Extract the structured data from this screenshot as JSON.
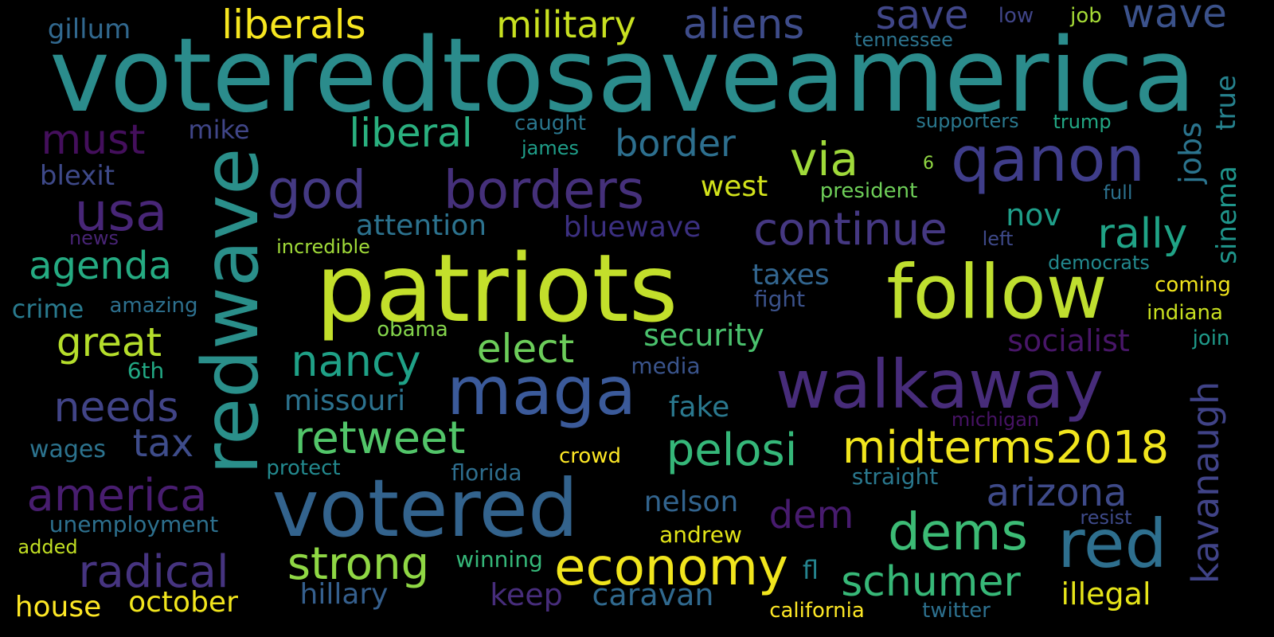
{
  "words": [
    {
      "text": "voteredtosaveamerica",
      "color": "#2b8c8c"
    },
    {
      "text": "patriots",
      "color": "#c3df2b"
    },
    {
      "text": "redwave",
      "color": "#2a8f8a"
    },
    {
      "text": "follow",
      "color": "#bfdf2f"
    },
    {
      "text": "walkaway",
      "color": "#472c7a"
    },
    {
      "text": "votered",
      "color": "#33638d"
    },
    {
      "text": "maga",
      "color": "#3b5a9a"
    },
    {
      "text": "qanon",
      "color": "#3f3d8a"
    },
    {
      "text": "red",
      "color": "#2e6f8e"
    },
    {
      "text": "economy",
      "color": "#f1e51d"
    },
    {
      "text": "dems",
      "color": "#3cbb75"
    },
    {
      "text": "god",
      "color": "#443983"
    },
    {
      "text": "borders",
      "color": "#45307a"
    },
    {
      "text": "usa",
      "color": "#482677"
    },
    {
      "text": "pelosi",
      "color": "#35b779"
    },
    {
      "text": "midterms2018",
      "color": "#f1e51d"
    },
    {
      "text": "radical",
      "color": "#463480"
    },
    {
      "text": "strong",
      "color": "#8fd744"
    },
    {
      "text": "america",
      "color": "#481d6f"
    },
    {
      "text": "continue",
      "color": "#453882"
    },
    {
      "text": "retweet",
      "color": "#52c569"
    },
    {
      "text": "kavanaugh",
      "color": "#404387"
    },
    {
      "text": "via",
      "color": "#9fda3a"
    },
    {
      "text": "nancy",
      "color": "#1fa187"
    },
    {
      "text": "schumer",
      "color": "#37b878"
    },
    {
      "text": "elect",
      "color": "#6ccd5a"
    },
    {
      "text": "great",
      "color": "#b5de2b"
    },
    {
      "text": "liberal",
      "color": "#2ab07f"
    },
    {
      "text": "rally",
      "color": "#20a386"
    },
    {
      "text": "needs",
      "color": "#414487"
    },
    {
      "text": "arizona",
      "color": "#3e4a89"
    },
    {
      "text": "save",
      "color": "#404688"
    },
    {
      "text": "wave",
      "color": "#3b528b"
    },
    {
      "text": "liberals",
      "color": "#f6e620"
    },
    {
      "text": "aliens",
      "color": "#3e4c8a"
    },
    {
      "text": "military",
      "color": "#c8e020"
    },
    {
      "text": "agenda",
      "color": "#25ab82"
    },
    {
      "text": "must",
      "color": "#440f5c"
    },
    {
      "text": "border",
      "color": "#2d6f8e"
    },
    {
      "text": "tax",
      "color": "#3e4c8a"
    },
    {
      "text": "dem",
      "color": "#471b6e"
    },
    {
      "text": "jobs",
      "color": "#2b748e"
    },
    {
      "text": "illegal",
      "color": "#e5e419"
    },
    {
      "text": "sinema",
      "color": "#1f958b"
    },
    {
      "text": "true",
      "color": "#26828e"
    },
    {
      "text": "socialist",
      "color": "#481668"
    },
    {
      "text": "nov",
      "color": "#1f9e89"
    },
    {
      "text": "caravan",
      "color": "#30698e"
    },
    {
      "text": "keep",
      "color": "#472d7b"
    },
    {
      "text": "hillary",
      "color": "#355f8d"
    },
    {
      "text": "october",
      "color": "#f1e51d"
    },
    {
      "text": "house",
      "color": "#fde725"
    },
    {
      "text": "security",
      "color": "#4ac16d"
    },
    {
      "text": "missouri",
      "color": "#2c728e"
    },
    {
      "text": "attention",
      "color": "#2c728e"
    },
    {
      "text": "bluewave",
      "color": "#3b2f80"
    },
    {
      "text": "west",
      "color": "#d2e21b"
    },
    {
      "text": "taxes",
      "color": "#32658e"
    },
    {
      "text": "nelson",
      "color": "#32648e"
    },
    {
      "text": "fake",
      "color": "#2a788e"
    },
    {
      "text": "gillum",
      "color": "#31688e"
    },
    {
      "text": "mike",
      "color": "#404688"
    },
    {
      "text": "blexit",
      "color": "#3e4989"
    },
    {
      "text": "crime",
      "color": "#297a8e"
    },
    {
      "text": "amazing",
      "color": "#2d708e"
    },
    {
      "text": "6th",
      "color": "#22a884"
    },
    {
      "text": "wages",
      "color": "#2c738e"
    },
    {
      "text": "unemployment",
      "color": "#2d708e"
    },
    {
      "text": "added",
      "color": "#c2df23"
    },
    {
      "text": "andrew",
      "color": "#e2e418"
    },
    {
      "text": "winning",
      "color": "#35b779"
    },
    {
      "text": "fl",
      "color": "#25838e"
    },
    {
      "text": "protect",
      "color": "#23898e"
    },
    {
      "text": "florida",
      "color": "#2e6e8e"
    },
    {
      "text": "crowd",
      "color": "#fde725"
    },
    {
      "text": "straight",
      "color": "#2a788e"
    },
    {
      "text": "resist",
      "color": "#3e4a89"
    },
    {
      "text": "michigan",
      "color": "#471365"
    },
    {
      "text": "media",
      "color": "#3a548c"
    },
    {
      "text": "obama",
      "color": "#84d44b"
    },
    {
      "text": "incredible",
      "color": "#a0da39"
    },
    {
      "text": "news",
      "color": "#482475"
    },
    {
      "text": "fight",
      "color": "#3b528b"
    },
    {
      "text": "caught",
      "color": "#2a768e"
    },
    {
      "text": "james",
      "color": "#1f9e89"
    },
    {
      "text": "president",
      "color": "#6ece58"
    },
    {
      "text": "6",
      "color": "#90d743"
    },
    {
      "text": "full",
      "color": "#2c718e"
    },
    {
      "text": "left",
      "color": "#3e4989"
    },
    {
      "text": "supporters",
      "color": "#2a788e"
    },
    {
      "text": "trump",
      "color": "#22a884"
    },
    {
      "text": "democrats",
      "color": "#23898e"
    },
    {
      "text": "coming",
      "color": "#f1e51d"
    },
    {
      "text": "indiana",
      "color": "#c8e020"
    },
    {
      "text": "join",
      "color": "#1f9a8a"
    },
    {
      "text": "low",
      "color": "#404588"
    },
    {
      "text": "job",
      "color": "#a5db36"
    },
    {
      "text": "tennessee",
      "color": "#2c738e"
    },
    {
      "text": "california",
      "color": "#fde725"
    },
    {
      "text": "twitter",
      "color": "#2d708e"
    }
  ]
}
